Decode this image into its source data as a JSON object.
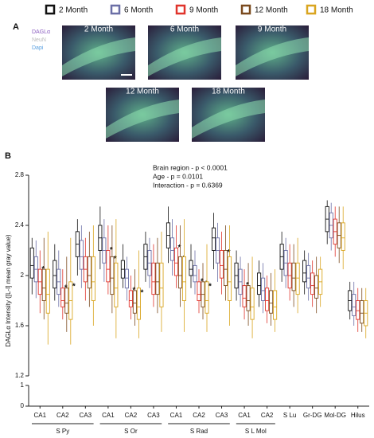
{
  "panel_a": {
    "label": "A",
    "channels": [
      "DAGLα",
      "NeuN",
      "Dapi"
    ],
    "images": [
      "2 Month",
      "6 Month",
      "9 Month",
      "12 Month",
      "18 Month"
    ]
  },
  "chart_data": {
    "type": "box",
    "panel_label": "B",
    "y_label": "DAGLα Intensity ([L-I] mean gray value)",
    "stats": [
      "Brain region - p < 0.0001",
      "Age - p = 0.0101",
      "Interaction - p = 0.6369"
    ],
    "categories": [
      "CA1",
      "CA2",
      "CA3",
      "CA1",
      "CA2",
      "CA3",
      "CA1",
      "CA2",
      "CA3",
      "CA1",
      "CA2",
      "S Lu",
      "Gr-DG",
      "Mol-DG",
      "Hilus"
    ],
    "groups": [
      {
        "label": "S Py",
        "span": [
          0,
          2
        ]
      },
      {
        "label": "S Or",
        "span": [
          3,
          5
        ]
      },
      {
        "label": "S Rad",
        "span": [
          6,
          8
        ]
      },
      {
        "label": "S L Mol",
        "span": [
          9,
          10
        ]
      }
    ],
    "ylim": [
      1.2,
      2.8
    ],
    "yticks": [
      1.2,
      1.6,
      2.0,
      2.4,
      2.8
    ],
    "lower_ylim": [
      0,
      1
    ],
    "lower_yticks": [
      0,
      1
    ],
    "series": [
      {
        "name": "2 Month",
        "color": "#111111",
        "values": [
          [
            1.85,
            1.98,
            2.08,
            2.22,
            2.3
          ],
          [
            1.8,
            1.9,
            2.0,
            2.12,
            2.25
          ],
          [
            2.0,
            2.15,
            2.25,
            2.35,
            2.45
          ],
          [
            2.05,
            2.2,
            2.3,
            2.4,
            2.55
          ],
          [
            1.9,
            1.98,
            2.05,
            2.12,
            2.25
          ],
          [
            1.95,
            2.05,
            2.15,
            2.25,
            2.35
          ],
          [
            2.1,
            2.22,
            2.32,
            2.42,
            2.55
          ],
          [
            1.9,
            2.0,
            2.05,
            2.12,
            2.25
          ],
          [
            2.05,
            2.2,
            2.3,
            2.38,
            2.5
          ],
          [
            1.8,
            1.9,
            2.0,
            2.1,
            2.2
          ],
          [
            1.75,
            1.85,
            1.92,
            2.02,
            2.12
          ],
          [
            1.95,
            2.05,
            2.15,
            2.25,
            2.35
          ],
          [
            1.85,
            1.95,
            2.02,
            2.12,
            2.2
          ],
          [
            2.25,
            2.35,
            2.45,
            2.55,
            2.6
          ],
          [
            1.65,
            1.72,
            1.8,
            1.88,
            1.95
          ]
        ],
        "stars": [
          null,
          null,
          null,
          null,
          null,
          null,
          null,
          null,
          null,
          null,
          null,
          null,
          null,
          null,
          null
        ]
      },
      {
        "name": "6 Month",
        "color": "#6b6fa6",
        "values": [
          [
            1.82,
            1.95,
            2.05,
            2.15,
            2.28
          ],
          [
            1.75,
            1.85,
            1.95,
            2.05,
            2.2
          ],
          [
            1.9,
            2.05,
            2.15,
            2.28,
            2.4
          ],
          [
            1.95,
            2.1,
            2.2,
            2.3,
            2.45
          ],
          [
            1.8,
            1.9,
            1.98,
            2.05,
            2.15
          ],
          [
            1.9,
            2.0,
            2.1,
            2.2,
            2.3
          ],
          [
            2.0,
            2.12,
            2.2,
            2.3,
            2.45
          ],
          [
            1.85,
            1.95,
            2.0,
            2.08,
            2.2
          ],
          [
            1.95,
            2.1,
            2.2,
            2.3,
            2.42
          ],
          [
            1.75,
            1.85,
            1.95,
            2.05,
            2.15
          ],
          [
            1.7,
            1.8,
            1.88,
            1.98,
            2.1
          ],
          [
            1.9,
            2.0,
            2.1,
            2.2,
            2.3
          ],
          [
            1.8,
            1.9,
            1.98,
            2.08,
            2.18
          ],
          [
            2.2,
            2.3,
            2.4,
            2.5,
            2.58
          ],
          [
            1.6,
            1.68,
            1.75,
            1.85,
            1.95
          ]
        ],
        "stars": [
          null,
          null,
          null,
          null,
          null,
          null,
          null,
          null,
          null,
          null,
          null,
          null,
          null,
          null,
          null
        ]
      },
      {
        "name": "9 Month",
        "color": "#e0342c",
        "values": [
          [
            1.7,
            1.85,
            1.95,
            2.05,
            2.2
          ],
          [
            1.65,
            1.75,
            1.8,
            1.9,
            2.05
          ],
          [
            1.8,
            1.95,
            2.05,
            2.15,
            2.3
          ],
          [
            1.85,
            1.95,
            2.05,
            2.2,
            2.4
          ],
          [
            1.65,
            1.75,
            1.8,
            1.88,
            2.0
          ],
          [
            1.75,
            1.85,
            1.95,
            2.1,
            2.25
          ],
          [
            1.9,
            2.0,
            2.1,
            2.22,
            2.4
          ],
          [
            1.7,
            1.8,
            1.85,
            1.95,
            2.05
          ],
          [
            1.85,
            1.98,
            2.08,
            2.2,
            2.35
          ],
          [
            1.65,
            1.75,
            1.82,
            1.92,
            2.05
          ],
          [
            1.62,
            1.72,
            1.8,
            1.9,
            2.0
          ],
          [
            1.8,
            1.9,
            2.0,
            2.1,
            2.25
          ],
          [
            1.75,
            1.85,
            1.92,
            2.02,
            2.12
          ],
          [
            2.15,
            2.25,
            2.35,
            2.45,
            2.55
          ],
          [
            1.55,
            1.65,
            1.72,
            1.8,
            1.9
          ]
        ],
        "stars": [
          "*",
          "*",
          null,
          "*",
          "*",
          null,
          "*",
          "*",
          null,
          "*",
          null,
          null,
          null,
          null,
          null
        ]
      },
      {
        "name": "12 Month",
        "color": "#7a4a1e",
        "values": [
          [
            1.65,
            1.8,
            1.9,
            2.05,
            2.3
          ],
          [
            1.55,
            1.7,
            1.78,
            1.9,
            2.15
          ],
          [
            1.75,
            1.9,
            2.0,
            2.15,
            2.35
          ],
          [
            1.7,
            1.85,
            1.98,
            2.15,
            2.4
          ],
          [
            1.6,
            1.7,
            1.78,
            1.88,
            2.05
          ],
          [
            1.7,
            1.85,
            1.95,
            2.1,
            2.3
          ],
          [
            1.75,
            1.9,
            2.0,
            2.15,
            2.4
          ],
          [
            1.65,
            1.75,
            1.85,
            1.95,
            2.1
          ],
          [
            1.8,
            1.92,
            2.05,
            2.2,
            2.4
          ],
          [
            1.6,
            1.72,
            1.8,
            1.92,
            2.1
          ],
          [
            1.6,
            1.7,
            1.78,
            1.88,
            2.02
          ],
          [
            1.75,
            1.88,
            1.98,
            2.1,
            2.25
          ],
          [
            1.7,
            1.82,
            1.9,
            2.0,
            2.15
          ],
          [
            2.1,
            2.22,
            2.32,
            2.42,
            2.55
          ],
          [
            1.55,
            1.62,
            1.7,
            1.8,
            1.9
          ]
        ],
        "stars": [
          null,
          "*",
          null,
          "*",
          "*",
          null,
          "*",
          "*",
          "*",
          null,
          null,
          null,
          null,
          null,
          null
        ]
      },
      {
        "name": "18 Month",
        "color": "#d9a520",
        "values": [
          [
            1.45,
            1.7,
            1.85,
            2.05,
            2.35
          ],
          [
            1.45,
            1.65,
            1.8,
            1.95,
            2.3
          ],
          [
            1.6,
            1.8,
            1.95,
            2.15,
            2.4
          ],
          [
            1.5,
            1.75,
            1.9,
            2.1,
            2.45
          ],
          [
            1.5,
            1.65,
            1.75,
            1.9,
            2.2
          ],
          [
            1.55,
            1.75,
            1.9,
            2.1,
            2.35
          ],
          [
            1.55,
            1.8,
            1.95,
            2.15,
            2.45
          ],
          [
            1.55,
            1.7,
            1.8,
            1.95,
            2.25
          ],
          [
            1.6,
            1.8,
            1.95,
            2.15,
            2.4
          ],
          [
            1.5,
            1.65,
            1.75,
            1.9,
            2.15
          ],
          [
            1.55,
            1.65,
            1.75,
            1.88,
            2.05
          ],
          [
            1.7,
            1.85,
            1.98,
            2.1,
            2.3
          ],
          [
            1.75,
            1.85,
            1.95,
            2.05,
            2.15
          ],
          [
            2.05,
            2.2,
            2.3,
            2.42,
            2.55
          ],
          [
            1.5,
            1.6,
            1.7,
            1.8,
            1.9
          ]
        ],
        "stars": [
          null,
          "*",
          null,
          null,
          "*",
          null,
          null,
          "*",
          null,
          null,
          null,
          null,
          null,
          null,
          null
        ]
      }
    ]
  }
}
